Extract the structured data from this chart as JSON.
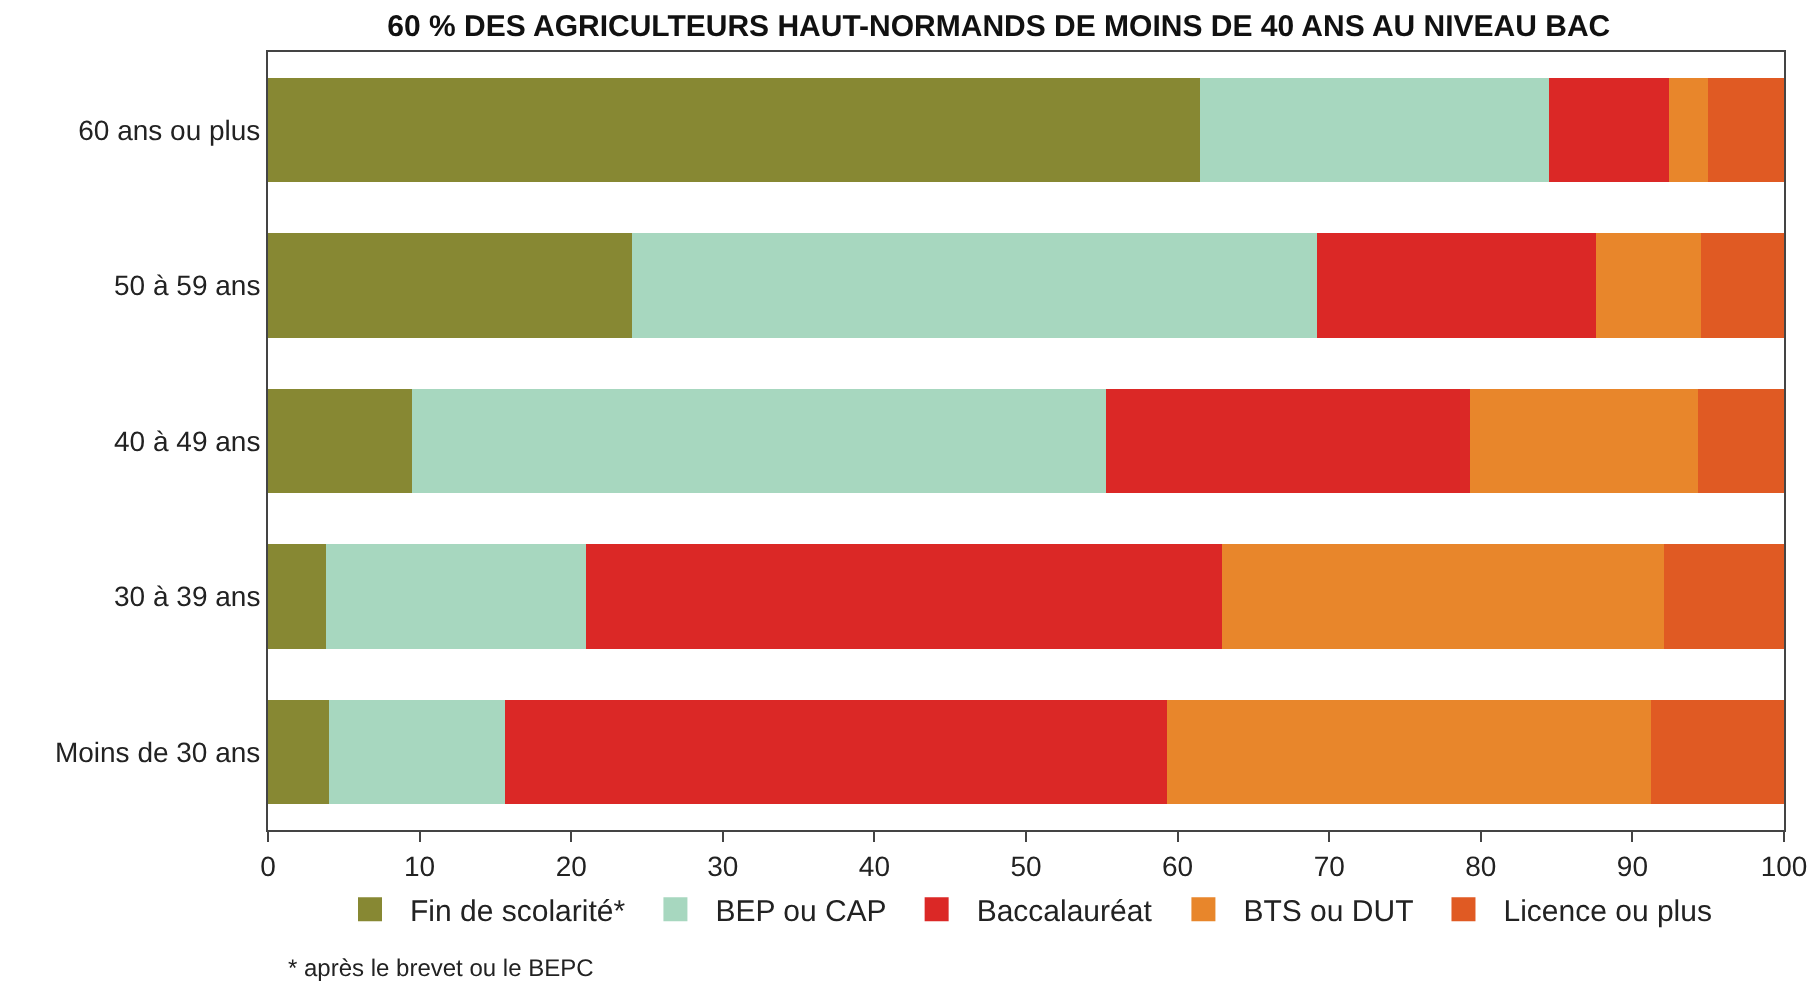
{
  "chart_data": {
    "type": "bar",
    "orientation": "horizontal",
    "stacked": true,
    "title": "60 % DES AGRICULTEURS HAUT-NORMANDS DE MOINS DE 40 ANS AU NIVEAU BAC",
    "categories": [
      "60 ans ou plus",
      "50 à 59 ans",
      "40 à 49 ans",
      "30 à 39 ans",
      "Moins de 30 ans"
    ],
    "series": [
      {
        "name": "Fin de scolarité*",
        "color": "#878833",
        "values": [
          61.5,
          24.0,
          9.5,
          3.8,
          4.0
        ]
      },
      {
        "name": "BEP ou CAP",
        "color": "#a7d7bf",
        "values": [
          23.0,
          45.2,
          45.8,
          17.2,
          11.6
        ]
      },
      {
        "name": "Baccalauréat",
        "color": "#db2826",
        "values": [
          7.9,
          18.4,
          24.0,
          41.9,
          43.7
        ]
      },
      {
        "name": "BTS ou DUT",
        "color": "#e8862b",
        "values": [
          2.6,
          6.9,
          15.0,
          29.2,
          31.9
        ]
      },
      {
        "name": "Licence ou plus",
        "color": "#e05a23",
        "values": [
          5.0,
          5.5,
          5.7,
          7.9,
          8.8
        ]
      }
    ],
    "xlim": [
      0,
      100
    ],
    "xticks": [
      0,
      10,
      20,
      30,
      40,
      50,
      60,
      70,
      80,
      90,
      100
    ],
    "grid": false,
    "legend": "bottom",
    "annotations": [
      "* après le brevet ou le BEPC"
    ]
  }
}
